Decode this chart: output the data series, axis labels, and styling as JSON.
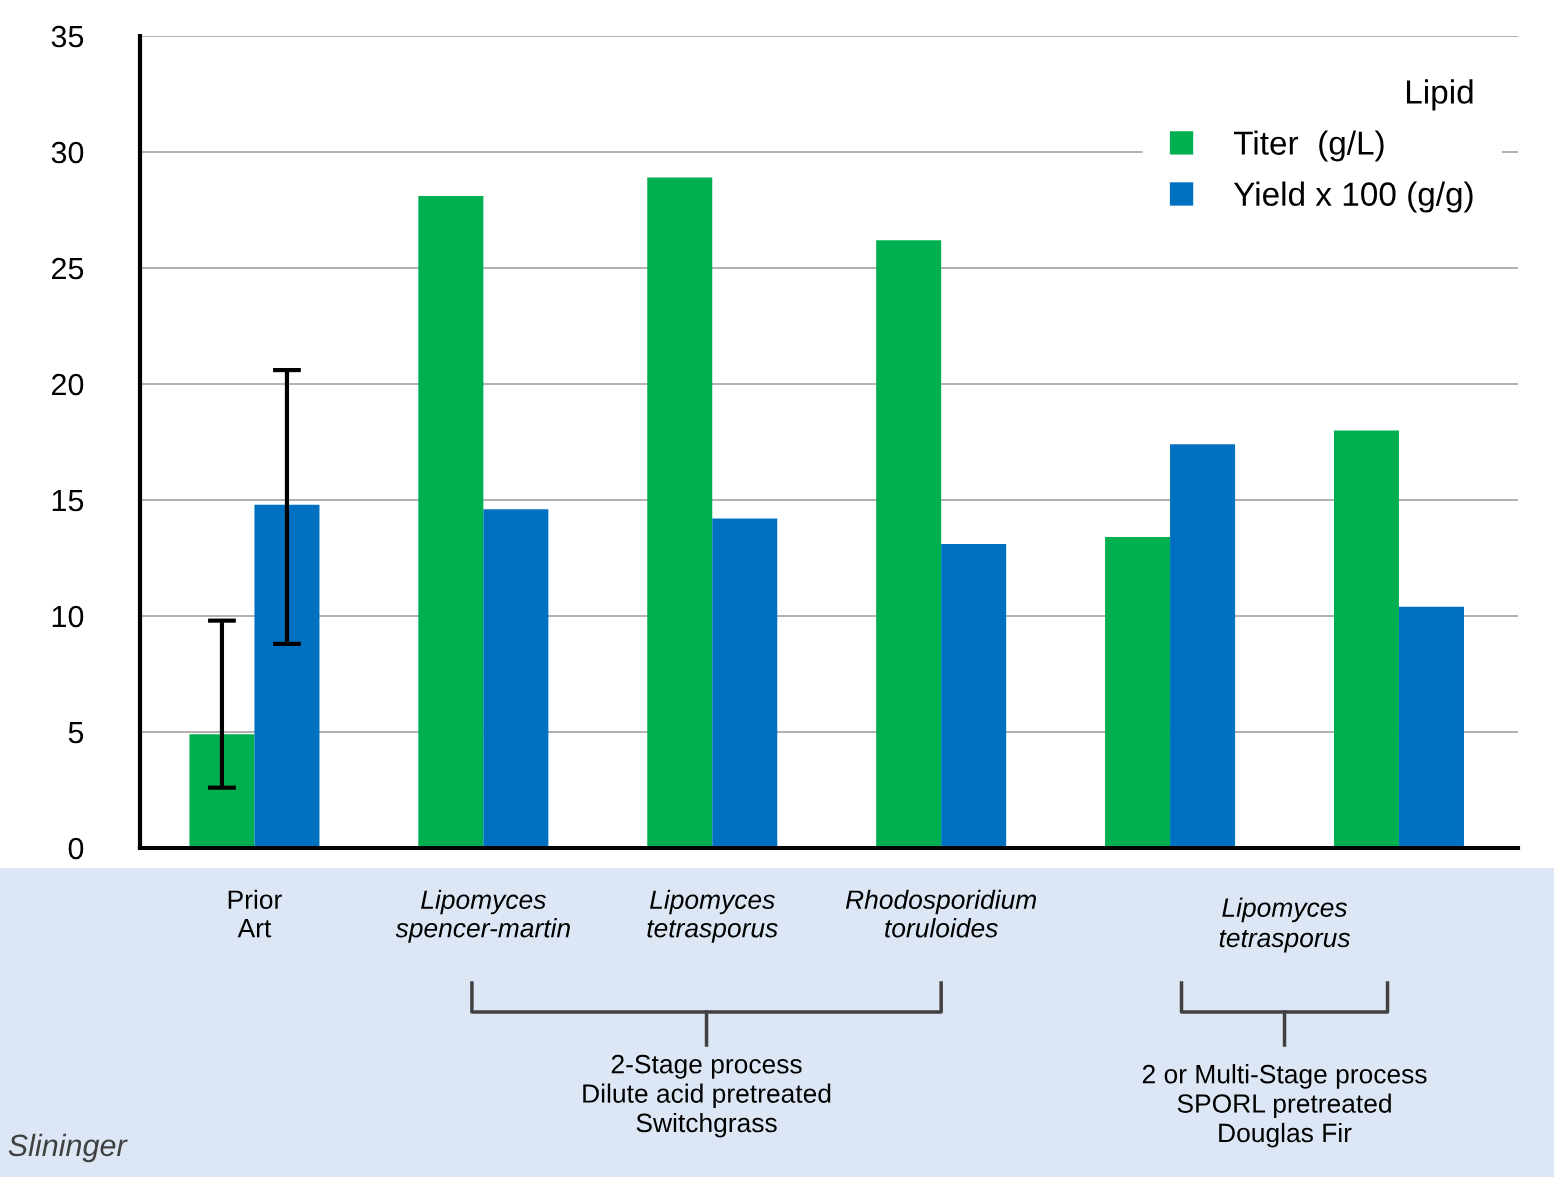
{
  "chart_data": {
    "type": "bar",
    "categories": [
      "Prior\nArt",
      "Lipomyces\nspencer-martin",
      "Lipomyces\ntetrasporus",
      "Rhodosporidium\ntoruloides",
      null,
      null
    ],
    "series": [
      {
        "name": "Titer  (g/L)",
        "color": "#00b050",
        "values": [
          4.9,
          28.1,
          28.9,
          26.2,
          13.4,
          18.0
        ],
        "errors": [
          [
            2.6,
            9.8
          ],
          null,
          null,
          null,
          null,
          null
        ]
      },
      {
        "name": "Yield x 100 (g/g)",
        "color": "#0070c0",
        "values": [
          14.8,
          14.6,
          14.2,
          13.1,
          17.4,
          10.4
        ],
        "errors": [
          [
            8.8,
            20.6
          ],
          null,
          null,
          null,
          null,
          null
        ]
      }
    ],
    "legend_title": "Lipid",
    "legend": "top right",
    "ylim": [
      0,
      35
    ],
    "yticks": [
      0,
      5,
      10,
      15,
      20,
      25,
      30,
      35
    ],
    "grid": "y",
    "annotations": [
      "Lipomyces\ntetrasporus",
      "2-Stage process\nDilute acid pretreated\nSwitchgrass",
      "2 or Multi-Stage process\nSPORL pretreated\nDouglas Fir",
      "Slininger"
    ]
  }
}
